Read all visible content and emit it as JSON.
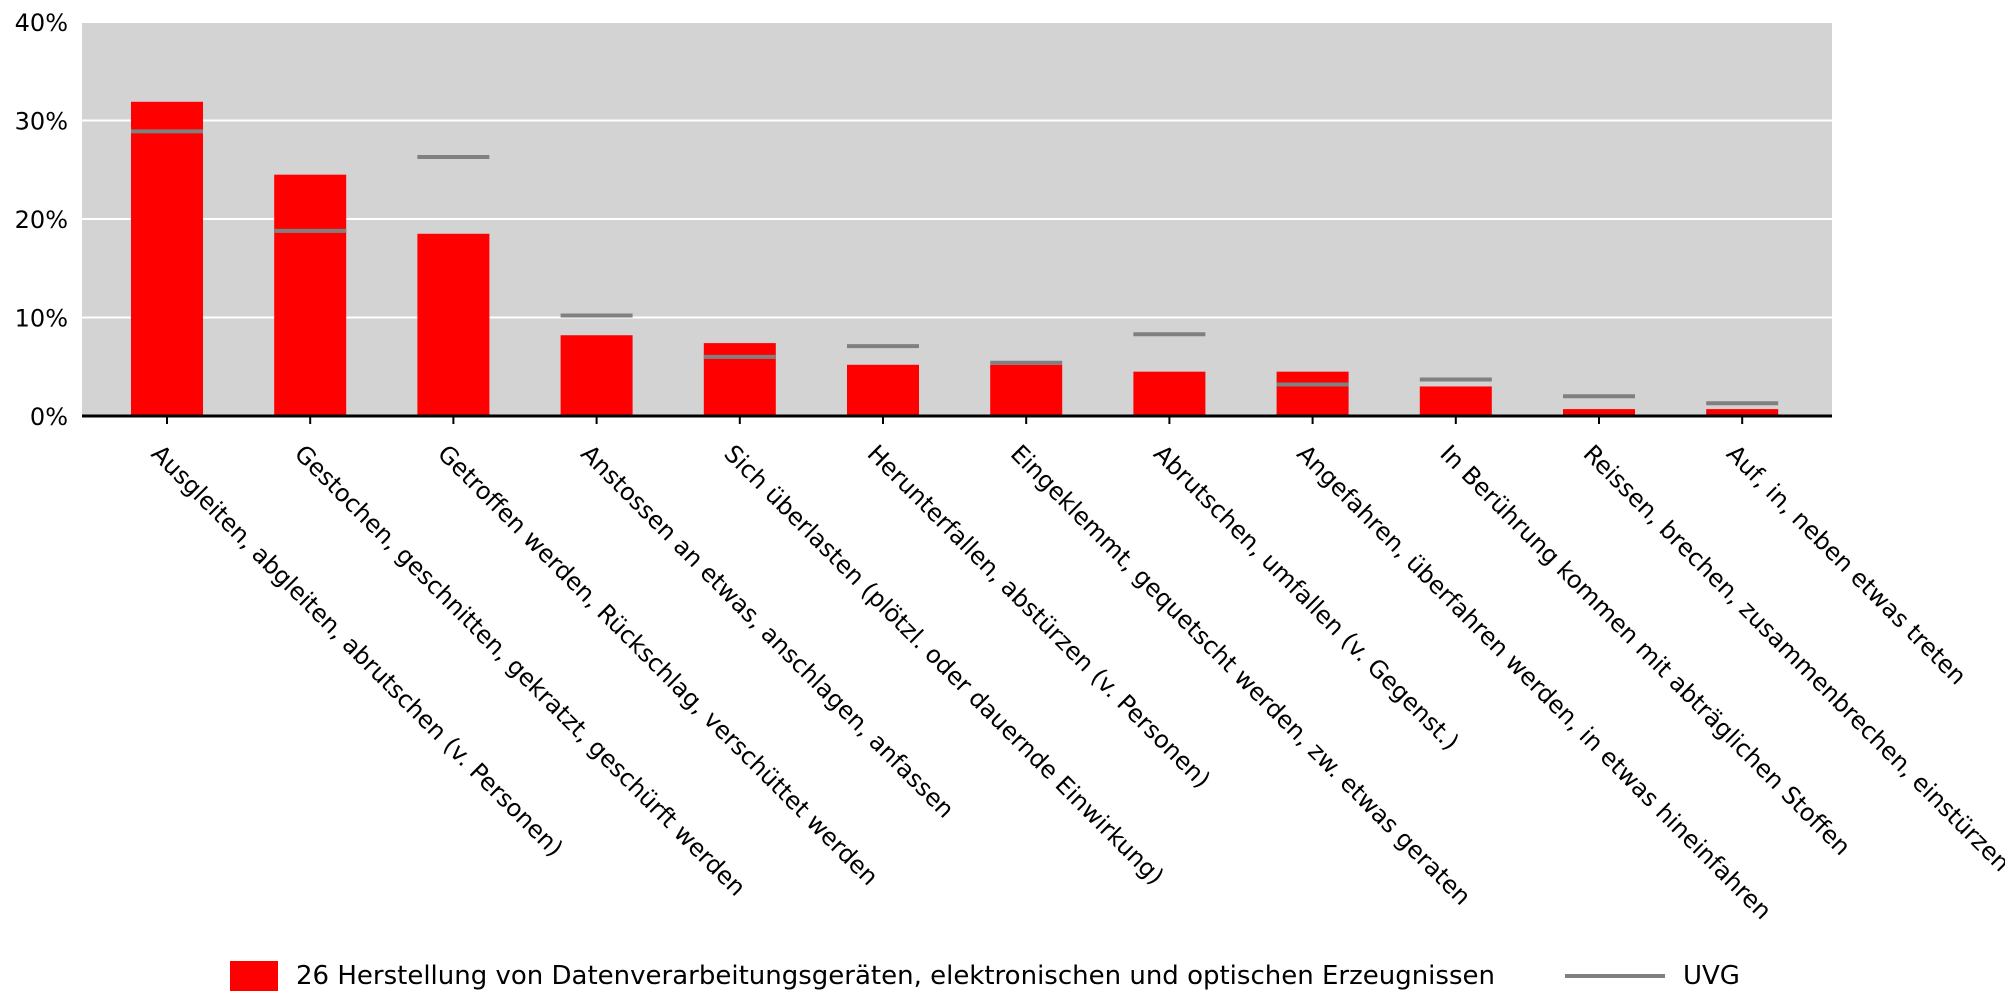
{
  "chart_data": {
    "type": "bar",
    "categories": [
      "Ausgleiten, abgleiten, abrutschen (v. Personen)",
      "Gestochen, geschnitten, gekratzt, geschürft werden",
      "Getroffen werden, Rückschlag, verschüttet werden",
      "Anstossen an etwas, anschlagen, anfassen",
      "Sich überlasten (plötzl. oder dauernde Einwirkung)",
      "Herunterfallen, abstürzen (v. Personen)",
      "Eingeklemmt, gequetscht werden, zw. etwas geraten",
      "Abrutschen, umfallen (v. Gegenst.)",
      "Angefahren, überfahren werden, in etwas hineinfahren",
      "In Berührung kommen mit abträglichen Stoffen",
      "Reissen, brechen, zusammenbrechen, einstürzen",
      "Auf, in, neben etwas treten"
    ],
    "series": [
      {
        "name": "26 Herstellung von Datenverarbeitungsgeräten, elektronischen und optischen Erzeugnissen",
        "kind": "bar",
        "color": "#ff0000",
        "values": [
          31.9,
          24.5,
          18.5,
          8.2,
          7.4,
          5.2,
          5.2,
          4.5,
          4.5,
          3.0,
          0.7,
          0.7
        ]
      },
      {
        "name": "UVG",
        "kind": "marker-line",
        "color": "#808080",
        "values": [
          28.9,
          18.8,
          26.3,
          10.2,
          6.0,
          7.1,
          5.4,
          8.3,
          3.2,
          3.7,
          2.0,
          1.3
        ]
      }
    ],
    "yticks": [
      0,
      10,
      20,
      30,
      40
    ],
    "ytick_labels": [
      "0%",
      "10%",
      "20%",
      "30%",
      "40%"
    ],
    "ylim": [
      0,
      40
    ],
    "y_unit": "%",
    "grid": true,
    "plot_background": "#d3d3d3",
    "legend_position": "bottom"
  }
}
